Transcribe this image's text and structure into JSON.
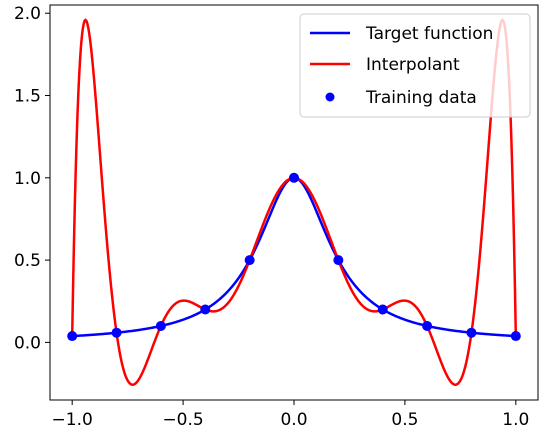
{
  "chart_data": {
    "type": "line",
    "title": "",
    "xlabel": "",
    "ylabel": "",
    "xlim": [
      -1.1,
      1.1
    ],
    "ylim": [
      -0.35,
      2.05
    ],
    "x_ticks": [
      -1.0,
      -0.5,
      0.0,
      0.5,
      1.0
    ],
    "x_tick_labels": [
      "−1.0",
      "−0.5",
      "0.0",
      "0.5",
      "1.0"
    ],
    "y_ticks": [
      0.0,
      0.5,
      1.0,
      1.5,
      2.0
    ],
    "y_tick_labels": [
      "0.0",
      "0.5",
      "1.0",
      "1.5",
      "2.0"
    ],
    "grid": false,
    "legend_position": "top-right",
    "series": [
      {
        "name": "Target function",
        "kind": "line",
        "color": "#0000ff",
        "function": "1 / (1 + 25 x^2)",
        "x_range": [
          -1.0,
          1.0
        ]
      },
      {
        "name": "Interpolant",
        "kind": "line",
        "color": "#ff0000",
        "description": "degree-10 polynomial through the training data",
        "x_range": [
          -1.0,
          1.0
        ]
      },
      {
        "name": "Training data",
        "kind": "scatter",
        "color": "#0000ff",
        "x": [
          -1.0,
          -0.8,
          -0.6,
          -0.4,
          -0.2,
          0.0,
          0.2,
          0.4,
          0.6,
          0.8,
          1.0
        ],
        "y": [
          0.0385,
          0.0588,
          0.1,
          0.2,
          0.5,
          1.0,
          0.5,
          0.2,
          0.1,
          0.0588,
          0.0385
        ]
      }
    ]
  }
}
